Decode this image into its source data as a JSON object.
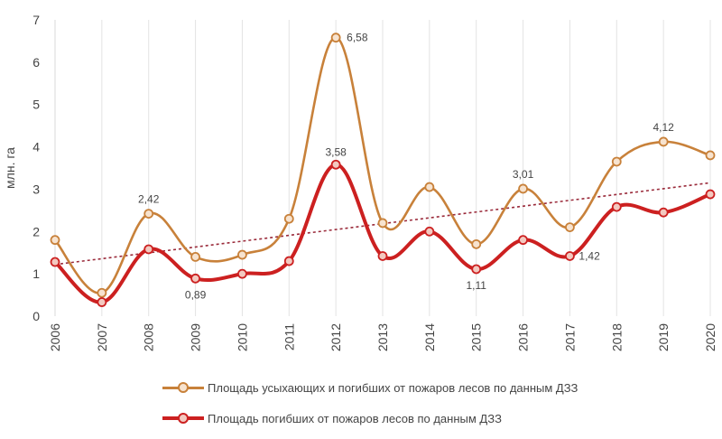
{
  "chart_data": {
    "type": "line",
    "categories": [
      "2006",
      "2007",
      "2008",
      "2009",
      "2010",
      "2011",
      "2012",
      "2013",
      "2014",
      "2015",
      "2016",
      "2017",
      "2018",
      "2019",
      "2020"
    ],
    "series": [
      {
        "name": "Площадь усыхающих и погибших от пожаров лесов по данным ДЗЗ",
        "color": "#c8813a",
        "values": [
          1.8,
          0.55,
          2.42,
          1.4,
          1.45,
          2.3,
          6.58,
          2.2,
          3.05,
          1.7,
          3.01,
          2.1,
          3.65,
          4.12,
          3.8
        ],
        "labels": {
          "2008": "2,42",
          "2012": "6,58",
          "2016": "3,01",
          "2019": "4,12"
        }
      },
      {
        "name": "Площадь погибших от пожаров лесов по данным ДЗЗ",
        "color": "#cc2020",
        "values": [
          1.28,
          0.33,
          1.58,
          0.89,
          1.0,
          1.3,
          3.58,
          1.42,
          2.0,
          1.11,
          1.8,
          1.42,
          2.58,
          2.45,
          2.88
        ],
        "labels": {
          "2009": "0,89",
          "2012": "3,58",
          "2015": "1,11",
          "2017": "1,42"
        }
      }
    ],
    "trendline": {
      "series": 0,
      "from": 1.22,
      "to": 3.15,
      "color": "#9a2a3a"
    },
    "yticks": [
      "0",
      "1",
      "2",
      "3",
      "4",
      "5",
      "6",
      "7"
    ],
    "ylim": [
      0,
      7
    ],
    "ylabel": "млн. га",
    "xlabel": "",
    "legend_position": "bottom"
  }
}
